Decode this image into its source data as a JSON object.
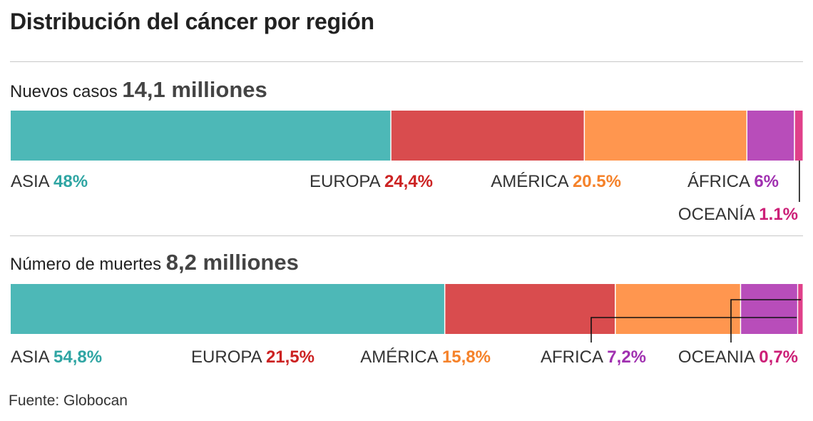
{
  "title": "Distribución del cáncer por región",
  "source": "Fuente: Globocan",
  "chart_data": [
    {
      "type": "bar",
      "stacked": true,
      "orientation": "horizontal",
      "heading": "Nuevos casos",
      "total": "14,1 millones",
      "total_text": "14,1 milliones",
      "segments": [
        {
          "region": "ASIA",
          "label": "48%",
          "value": 48,
          "color": "#4db8b7",
          "label_color": "#2fa5a3"
        },
        {
          "region": "EUROPA",
          "label": "24,4%",
          "value": 24.4,
          "color": "#d94c4e",
          "label_color": "#cc2222"
        },
        {
          "region": "AMÉRICA",
          "label": "20.5%",
          "value": 20.5,
          "color": "#ff964f",
          "label_color": "#f5822a"
        },
        {
          "region": "ÁFRICA",
          "label": "6%",
          "value": 6,
          "color": "#b84dba",
          "label_color": "#a030b0"
        },
        {
          "region": "OCEANÍA",
          "label": "1.1%",
          "value": 1.1,
          "color": "#e0408a",
          "label_color": "#cc1f77"
        }
      ]
    },
    {
      "type": "bar",
      "stacked": true,
      "orientation": "horizontal",
      "heading": "Número de muertes",
      "total_text": "8,2 milliones",
      "segments": [
        {
          "region": "ASIA",
          "label": "54,8%",
          "value": 54.8,
          "color": "#4db8b7",
          "label_color": "#2fa5a3"
        },
        {
          "region": "EUROPA",
          "label": "21,5%",
          "value": 21.5,
          "color": "#d94c4e",
          "label_color": "#cc2222"
        },
        {
          "region": "AMÉRICA",
          "label": "15,8%",
          "value": 15.8,
          "color": "#ff964f",
          "label_color": "#f5822a"
        },
        {
          "region": "AFRICA",
          "label": "7,2%",
          "value": 7.2,
          "color": "#b84dba",
          "label_color": "#a030b0"
        },
        {
          "region": "OCEANIA",
          "label": "0,7%",
          "value": 0.7,
          "color": "#e0408a",
          "label_color": "#cc1f77"
        }
      ]
    }
  ]
}
